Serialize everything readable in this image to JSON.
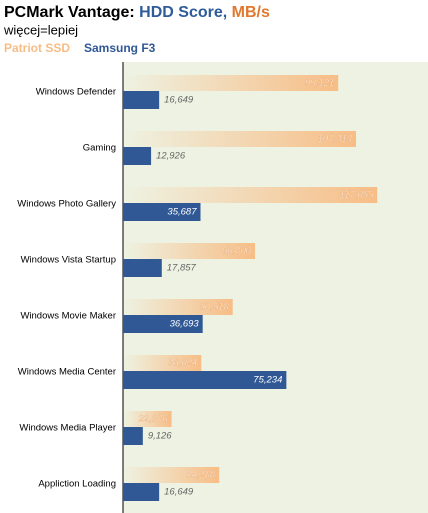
{
  "chart_data": {
    "type": "hbar",
    "title_parts": [
      {
        "text": "PCMark Vantage:",
        "color": "#000000"
      },
      {
        "text": "HDD Score,",
        "color": "#2e5c9a"
      },
      {
        "text": "MB/s",
        "color": "#e0782e"
      }
    ],
    "subtitle": "więcej=lepiej",
    "categories": [
      "Windows Defender",
      "Gaming",
      "Windows Photo Gallery",
      "Windows Vista Startup",
      "Windows Movie Maker",
      "Windows Media Center",
      "Windows Media Player",
      "Appliction Loading"
    ],
    "series": [
      {
        "name": "Patriot SSD",
        "color": "#f7bd86",
        "values": [
          99121,
          107313,
          117055,
          60800,
          50518,
          36024,
          22376,
          44288
        ],
        "value_labels": [
          "99,121",
          "107,313",
          "117,055",
          "60,800",
          "50,518",
          "36,024",
          "22,376",
          "44,288"
        ]
      },
      {
        "name": "Samsung F3",
        "color": "#2f5895",
        "values": [
          16649,
          12926,
          35687,
          17857,
          36693,
          75234,
          9126,
          16649
        ],
        "value_labels": [
          "16,649",
          "12,926",
          "35,687",
          "17,857",
          "36,693",
          "75,234",
          "9,126",
          "16,649"
        ]
      }
    ],
    "xlim": [
      0,
      140000
    ]
  }
}
